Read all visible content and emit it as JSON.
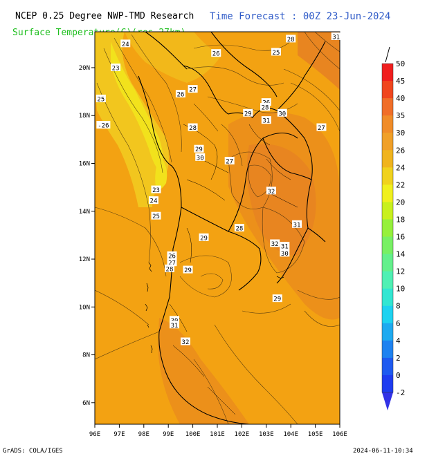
{
  "header": {
    "title_left": "NCEP 0.25 Degree NWP-TMD Research",
    "title_right": "Time Forecast : 00Z 23-Jun-2024",
    "subtitle": "Surface Temperature(C)(res.27km)"
  },
  "footer": {
    "left": "GrADS: COLA/IGES",
    "right": "2024-06-11-10:34"
  },
  "map": {
    "lon_labels": [
      "96E",
      "97E",
      "98E",
      "99E",
      "100E",
      "101E",
      "102E",
      "103E",
      "104E",
      "105E",
      "106E"
    ],
    "lat_labels": [
      "20N",
      "18N",
      "16N",
      "14N",
      "12N",
      "10N",
      "8N",
      "6N"
    ],
    "contour_labels": [
      {
        "text": "24",
        "lon": 97.25,
        "lat": 21.0
      },
      {
        "text": "23",
        "lon": 96.85,
        "lat": 20.0
      },
      {
        "text": "25",
        "lon": 96.25,
        "lat": 18.7
      },
      {
        "text": "-26",
        "lon": 96.35,
        "lat": 17.6
      },
      {
        "text": "26",
        "lon": 100.95,
        "lat": 20.6
      },
      {
        "text": "25",
        "lon": 103.4,
        "lat": 20.65
      },
      {
        "text": "28",
        "lon": 104.0,
        "lat": 21.2
      },
      {
        "text": "31",
        "lon": 105.85,
        "lat": 21.3
      },
      {
        "text": "27",
        "lon": 100.0,
        "lat": 19.1
      },
      {
        "text": "26",
        "lon": 99.5,
        "lat": 18.9
      },
      {
        "text": "26",
        "lon": 103.0,
        "lat": 18.55
      },
      {
        "text": "28",
        "lon": 102.95,
        "lat": 18.35
      },
      {
        "text": "30",
        "lon": 103.65,
        "lat": 18.1
      },
      {
        "text": "29",
        "lon": 102.25,
        "lat": 18.1
      },
      {
        "text": "31",
        "lon": 103.0,
        "lat": 17.8
      },
      {
        "text": "27",
        "lon": 105.25,
        "lat": 17.5
      },
      {
        "text": "28",
        "lon": 100.0,
        "lat": 17.5
      },
      {
        "text": "29",
        "lon": 100.25,
        "lat": 16.6
      },
      {
        "text": "30",
        "lon": 100.3,
        "lat": 16.25
      },
      {
        "text": "27",
        "lon": 101.5,
        "lat": 16.1
      },
      {
        "text": "23",
        "lon": 98.5,
        "lat": 14.9
      },
      {
        "text": "24",
        "lon": 98.4,
        "lat": 14.45
      },
      {
        "text": "25",
        "lon": 98.5,
        "lat": 13.8
      },
      {
        "text": "32",
        "lon": 103.2,
        "lat": 14.85
      },
      {
        "text": "31",
        "lon": 104.25,
        "lat": 13.45
      },
      {
        "text": "28",
        "lon": 101.9,
        "lat": 13.3
      },
      {
        "text": "29",
        "lon": 100.45,
        "lat": 12.9
      },
      {
        "text": "32",
        "lon": 103.35,
        "lat": 12.65
      },
      {
        "text": "31",
        "lon": 103.75,
        "lat": 12.55
      },
      {
        "text": "30",
        "lon": 103.75,
        "lat": 12.25
      },
      {
        "text": "26",
        "lon": 99.15,
        "lat": 12.15
      },
      {
        "text": "27",
        "lon": 99.15,
        "lat": 11.85
      },
      {
        "text": "28",
        "lon": 99.05,
        "lat": 11.6
      },
      {
        "text": "29",
        "lon": 99.8,
        "lat": 11.55
      },
      {
        "text": "29",
        "lon": 103.45,
        "lat": 10.35
      },
      {
        "text": "30",
        "lon": 99.25,
        "lat": 9.45
      },
      {
        "text": "31",
        "lon": 99.25,
        "lat": 9.25
      },
      {
        "text": "32",
        "lon": 99.7,
        "lat": 8.55
      }
    ]
  },
  "colorbar": {
    "labels": [
      "50",
      "45",
      "40",
      "35",
      "30",
      "26",
      "24",
      "22",
      "20",
      "18",
      "16",
      "14",
      "12",
      "10",
      "8",
      "6",
      "4",
      "2",
      "0",
      "-2"
    ],
    "colors": [
      "#f01e1e",
      "#f0461e",
      "#f06e28",
      "#f08c28",
      "#f0a028",
      "#f0b41e",
      "#f0d21e",
      "#f0f01e",
      "#c8f01e",
      "#96f03c",
      "#78f064",
      "#64f08c",
      "#50f0b4",
      "#32e6d2",
      "#1ed2f0",
      "#1eaaf0",
      "#1e82f0",
      "#1e5af0",
      "#1e3cf0",
      "#3232e6"
    ]
  }
}
